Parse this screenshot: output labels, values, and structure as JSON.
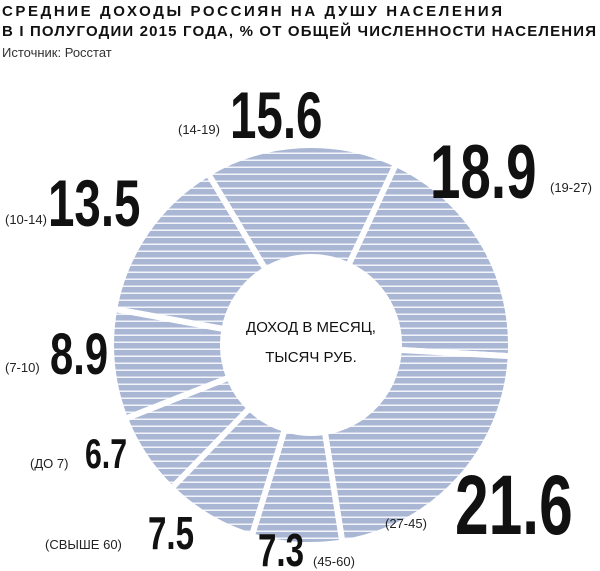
{
  "chart_data": {
    "type": "donut",
    "title": [
      "СРЕДНИЕ ДОХОДЫ РОССИЯН НА ДУШУ НАСЕЛЕНИЯ",
      "В I ПОЛУГОДИИ 2015 ГОДА, % ОТ ОБЩЕЙ ЧИСЛЕННОСТИ НАСЕЛЕНИЯ"
    ],
    "source": "Источник: Росстат",
    "center_label": [
      "ДОХОД В МЕСЯЦ,",
      "ТЫСЯЧ РУБ."
    ],
    "categories": [
      "(14-19)",
      "(19-27)",
      "(27-45)",
      "(45-60)",
      "(СВЫШЕ 60)",
      "(ДО 7)",
      "(7-10)",
      "(10-14)"
    ],
    "values": [
      15.6,
      18.9,
      21.6,
      7.3,
      7.5,
      6.7,
      8.9,
      13.5
    ],
    "color": "#a9b7d5"
  }
}
